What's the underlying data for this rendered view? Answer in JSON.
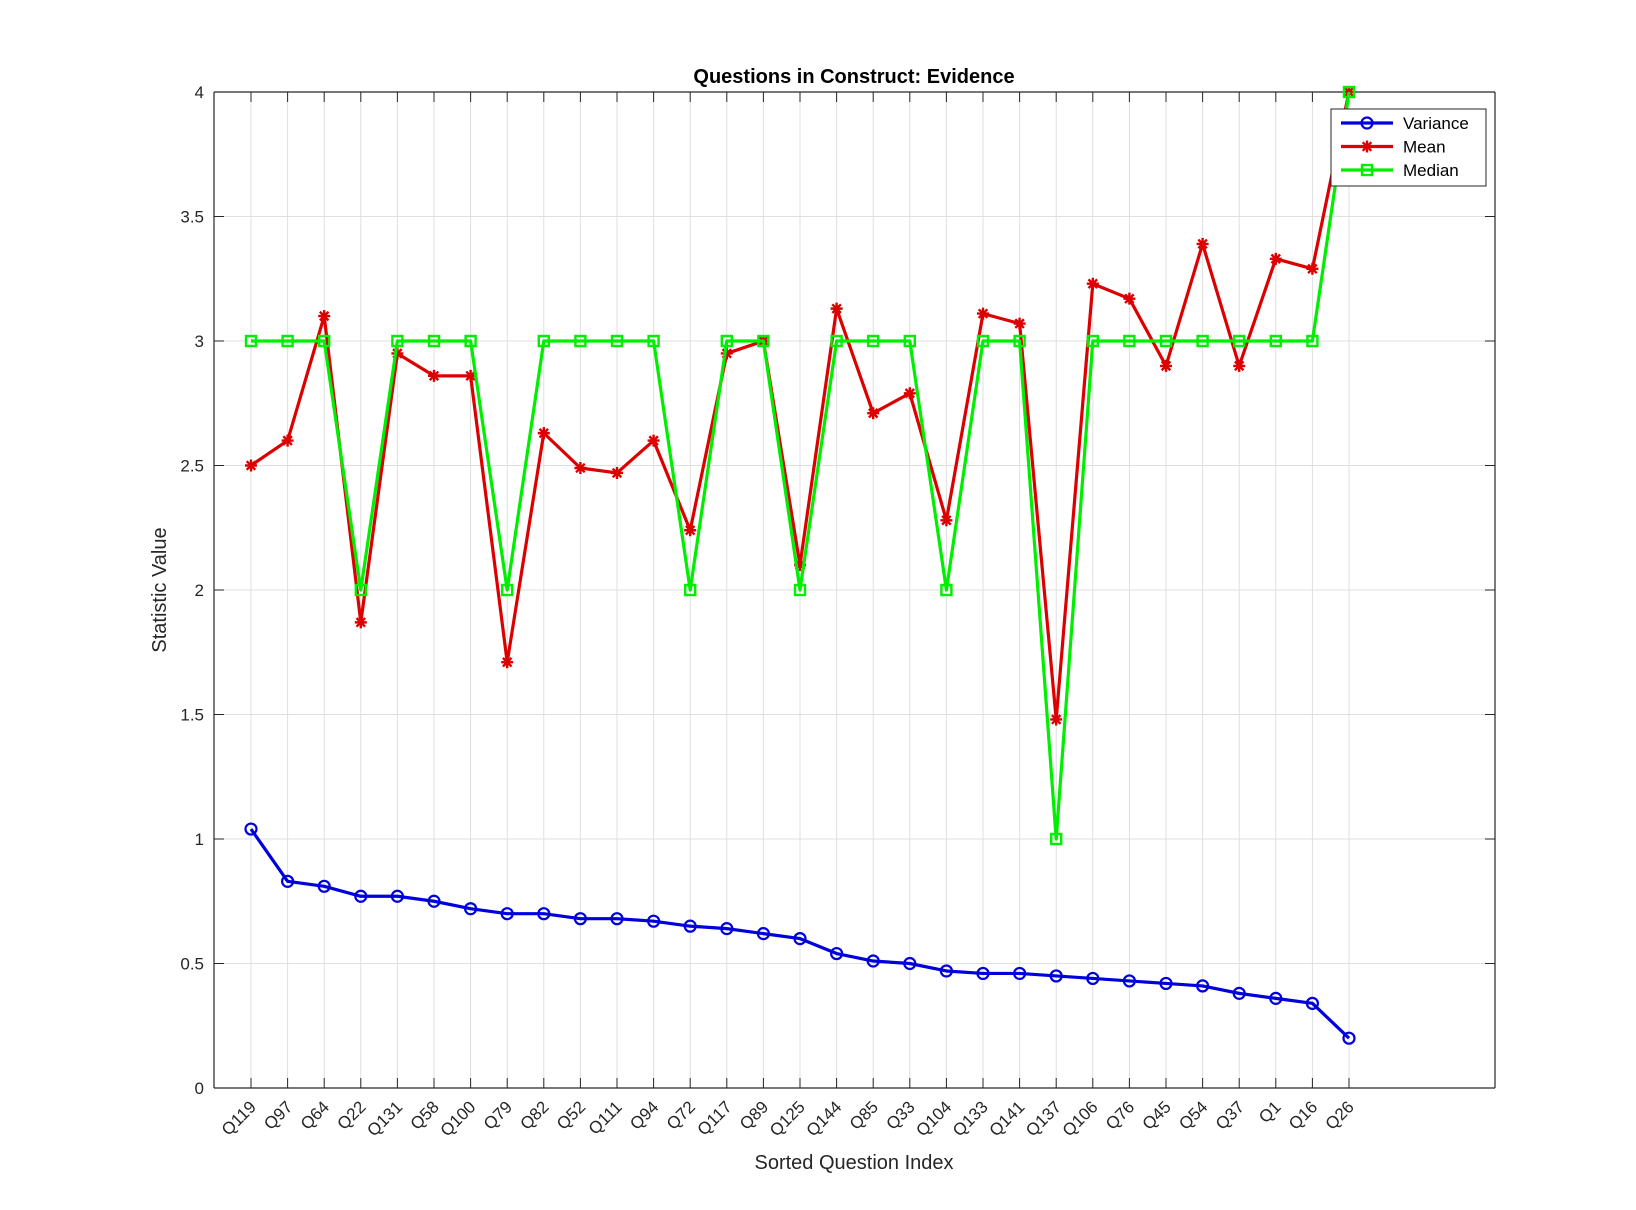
{
  "chart_data": {
    "type": "line",
    "title": "Questions in Construct: Evidence",
    "xlabel": "Sorted Question Index",
    "ylabel": "Statistic Value",
    "ylim": [
      0,
      4
    ],
    "yticks": [
      0,
      0.5,
      1,
      1.5,
      2,
      2.5,
      3,
      3.5,
      4
    ],
    "ytick_labels": [
      "0",
      "0.5",
      "1",
      "1.5",
      "2",
      "2.5",
      "3",
      "3.5",
      "4"
    ],
    "grid": true,
    "legend_position": "top-right",
    "categories": [
      "Q119",
      "Q97",
      "Q64",
      "Q22",
      "Q131",
      "Q58",
      "Q100",
      "Q79",
      "Q82",
      "Q52",
      "Q111",
      "Q94",
      "Q72",
      "Q117",
      "Q89",
      "Q125",
      "Q144",
      "Q85",
      "Q33",
      "Q104",
      "Q133",
      "Q141",
      "Q137",
      "Q106",
      "Q76",
      "Q45",
      "Q54",
      "Q37",
      "Q1",
      "Q16",
      "Q26"
    ],
    "series": [
      {
        "name": "Variance",
        "color": "#0000dd",
        "marker": "circle",
        "values": [
          1.04,
          0.83,
          0.81,
          0.77,
          0.77,
          0.75,
          0.72,
          0.7,
          0.7,
          0.68,
          0.68,
          0.67,
          0.65,
          0.64,
          0.62,
          0.6,
          0.54,
          0.51,
          0.5,
          0.47,
          0.46,
          0.46,
          0.45,
          0.44,
          0.43,
          0.42,
          0.41,
          0.38,
          0.36,
          0.34,
          0.2
        ]
      },
      {
        "name": "Mean",
        "color": "#dd0000",
        "marker": "asterisk",
        "values": [
          2.5,
          2.6,
          3.1,
          1.87,
          2.95,
          2.86,
          2.86,
          1.71,
          2.63,
          2.49,
          2.47,
          2.6,
          2.24,
          2.95,
          3.0,
          2.1,
          3.13,
          2.71,
          2.79,
          2.28,
          3.11,
          3.07,
          1.48,
          3.23,
          3.17,
          2.9,
          3.39,
          2.9,
          3.33,
          3.29,
          4.0
        ]
      },
      {
        "name": "Median",
        "color": "#00ee00",
        "marker": "square",
        "values": [
          3,
          3,
          3,
          2,
          3,
          3,
          3,
          2,
          3,
          3,
          3,
          3,
          2,
          3,
          3,
          2,
          3,
          3,
          3,
          2,
          3,
          3,
          1,
          3,
          3,
          3,
          3,
          3,
          3,
          3,
          4
        ]
      }
    ]
  }
}
